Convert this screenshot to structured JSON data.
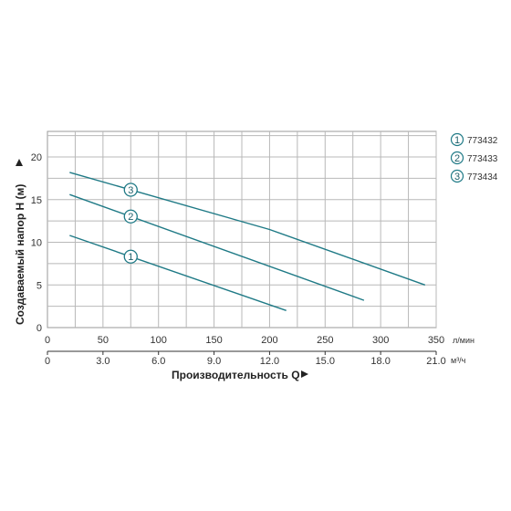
{
  "chart_data": {
    "type": "line",
    "ylabel": "Создаваемый напор H (м)",
    "xlabel": "Производительность Q",
    "x_unit_primary": "л/мин",
    "x_unit_secondary": "м³/ч",
    "xlim": [
      0,
      350
    ],
    "ylim": [
      0,
      23
    ],
    "x_ticks": [
      "0",
      "50",
      "100",
      "150",
      "200",
      "250",
      "300",
      "350"
    ],
    "x_ticks_secondary": [
      "0",
      "3.0",
      "6.0",
      "9.0",
      "12.0",
      "15.0",
      "18.0",
      "21.0"
    ],
    "y_ticks": [
      "0",
      "5",
      "10",
      "15",
      "20"
    ],
    "grid": true,
    "legend_position": "right",
    "line_color": "#1f7a86",
    "series": [
      {
        "marker": "1",
        "name": "773432",
        "x": [
          20,
          215
        ],
        "y": [
          10.8,
          2.0
        ],
        "marker_at": 75
      },
      {
        "marker": "2",
        "name": "773433",
        "x": [
          20,
          285
        ],
        "y": [
          15.6,
          3.2
        ],
        "marker_at": 75
      },
      {
        "marker": "3",
        "name": "773434",
        "x": [
          20,
          200,
          340
        ],
        "y": [
          18.2,
          11.5,
          5.0
        ],
        "marker_at": 75
      }
    ]
  }
}
